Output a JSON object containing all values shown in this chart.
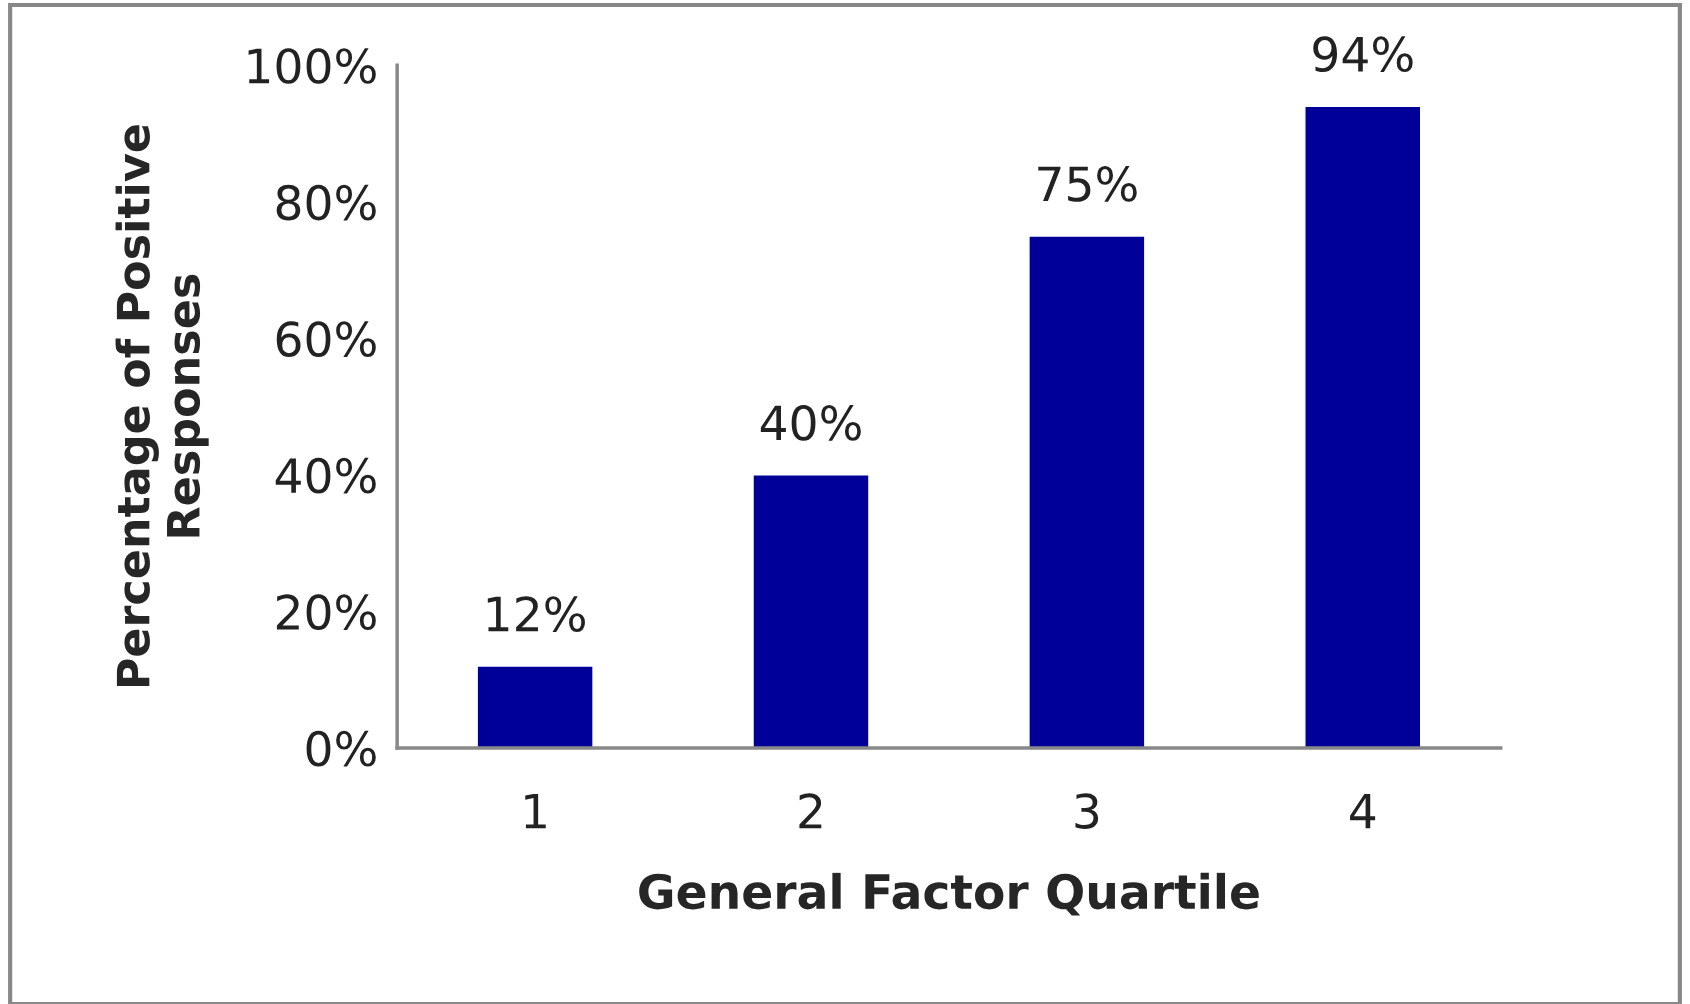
{
  "chart_data": {
    "type": "bar",
    "xlabel": "General Factor Quartile",
    "ylabel": "Percentage of Positive\nResponses",
    "categories": [
      "1",
      "2",
      "3",
      "4"
    ],
    "values": [
      12,
      40,
      75,
      94
    ],
    "color": "#000099",
    "value_labels": [
      "12%",
      "40%",
      "75%",
      "94%"
    ],
    "ylim": [
      0,
      100
    ],
    "yticks": [
      {
        "value": 0,
        "label": "0%"
      },
      {
        "value": 20,
        "label": "20%"
      },
      {
        "value": 40,
        "label": "40%"
      },
      {
        "value": 60,
        "label": "60%"
      },
      {
        "value": 80,
        "label": "80%"
      },
      {
        "value": 100,
        "label": "100%"
      }
    ],
    "grid": false,
    "legend": false
  }
}
